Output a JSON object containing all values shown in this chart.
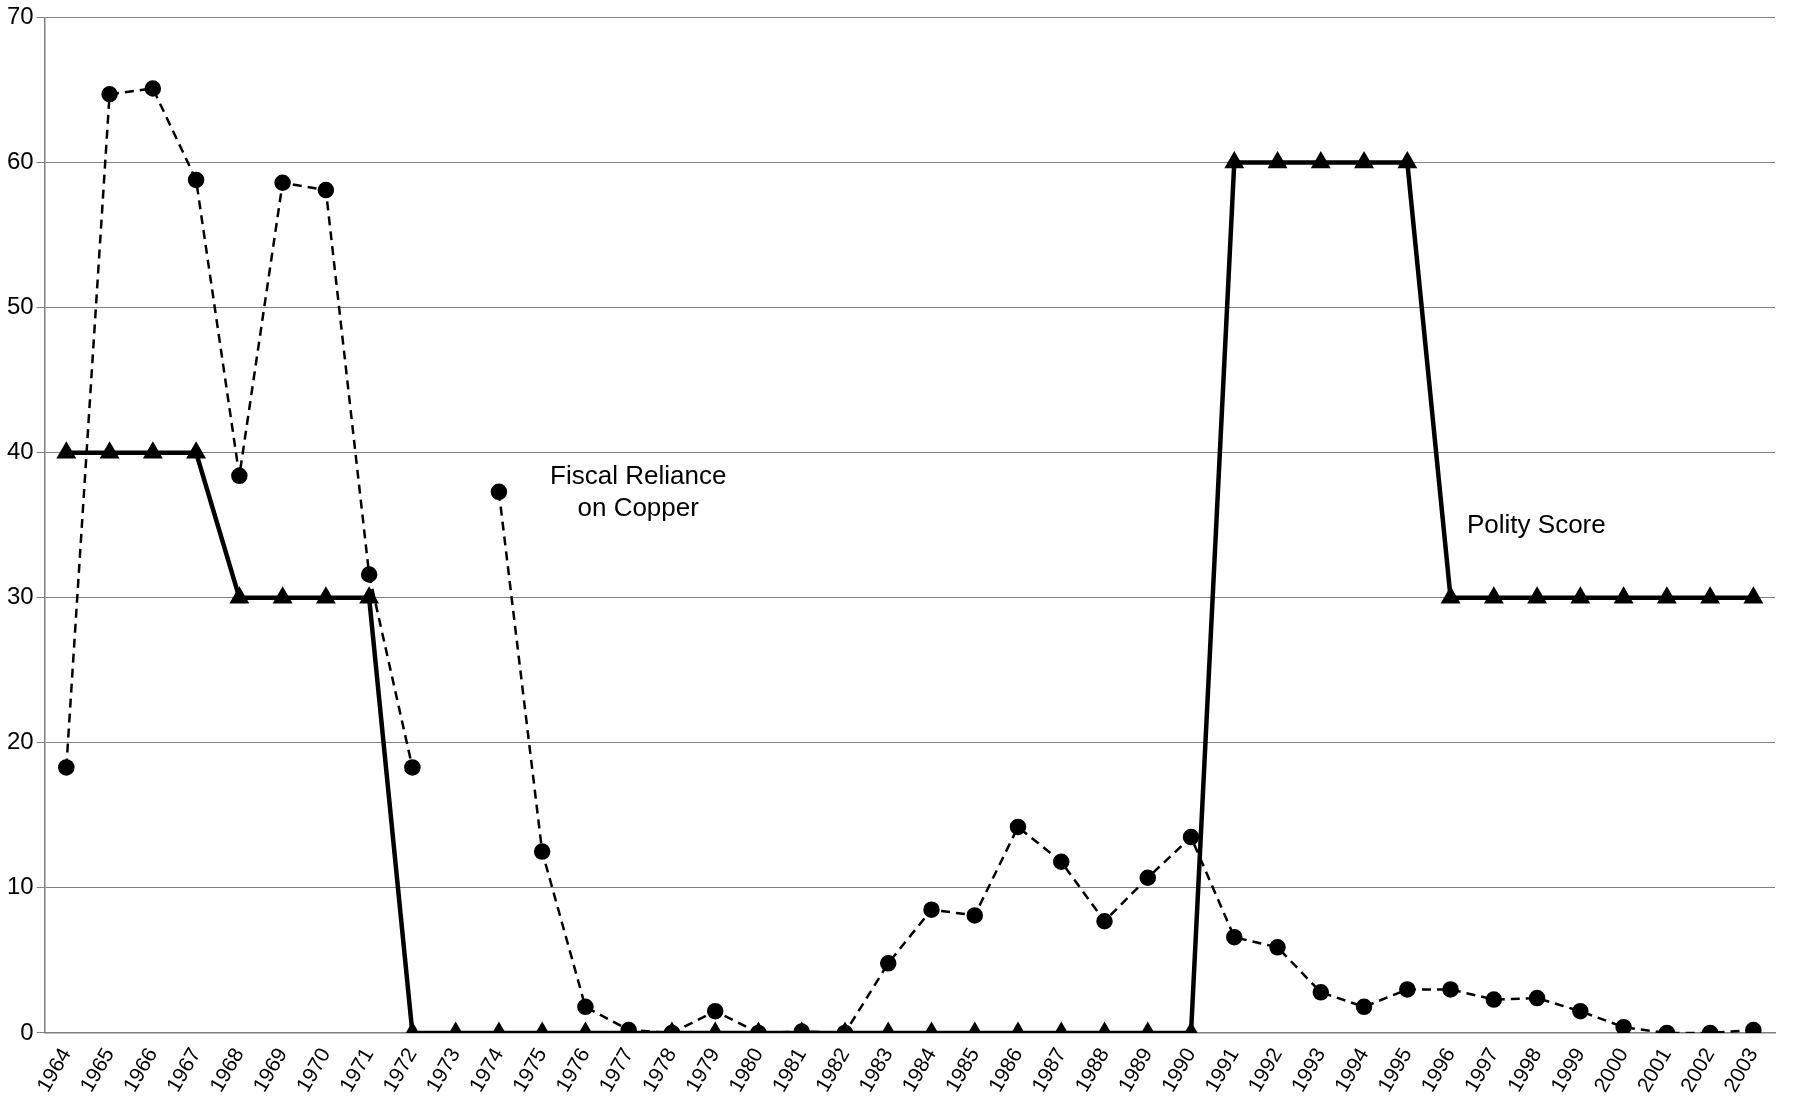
{
  "chart_data": {
    "type": "line",
    "categories": [
      "1964",
      "1965",
      "1966",
      "1967",
      "1968",
      "1969",
      "1970",
      "1971",
      "1972",
      "1973",
      "1974",
      "1975",
      "1976",
      "1977",
      "1978",
      "1979",
      "1980",
      "1981",
      "1982",
      "1983",
      "1984",
      "1985",
      "1986",
      "1987",
      "1988",
      "1989",
      "1990",
      "1991",
      "1992",
      "1993",
      "1994",
      "1995",
      "1996",
      "1997",
      "1998",
      "1999",
      "2000",
      "2001",
      "2002",
      "2003"
    ],
    "series": [
      {
        "color": "#000000",
        "marker": "triangle",
        "line_style": "solid",
        "values": [
          40,
          40,
          40,
          40,
          30,
          30,
          30,
          30,
          0,
          0,
          0,
          0,
          0,
          0,
          0,
          0,
          0,
          0,
          0,
          0,
          0,
          0,
          0,
          0,
          0,
          0,
          0,
          60,
          60,
          60,
          60,
          60,
          30,
          30,
          30,
          30,
          30,
          30,
          30,
          30
        ]
      },
      {
        "color": "#000000",
        "marker": "circle",
        "line_style": "dashed",
        "values": [
          18.3,
          64.7,
          65.1,
          58.8,
          38.4,
          58.6,
          58.1,
          31.6,
          18.3,
          null,
          37.3,
          12.5,
          1.8,
          0.2,
          0,
          1.5,
          0,
          0.1,
          0,
          4.8,
          8.5,
          8.1,
          14.2,
          11.8,
          7.7,
          10.7,
          13.5,
          6.6,
          5.9,
          2.8,
          1.8,
          3,
          3,
          2.3,
          2.4,
          1.5,
          0.4,
          0,
          0,
          0.2
        ]
      }
    ],
    "ylim": [
      0,
      70
    ],
    "yticks": [
      0,
      10,
      20,
      30,
      40,
      50,
      60,
      70
    ],
    "grid": "y",
    "legend": false,
    "annotations": [
      "Fiscal Reliance\non Copper",
      "Polity Score"
    ]
  }
}
